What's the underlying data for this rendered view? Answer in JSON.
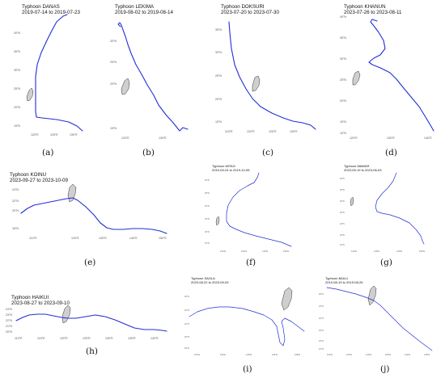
{
  "panels": [
    {
      "id": "a",
      "caption": "(a)",
      "typhoon": "Typhoon DANAS",
      "dates": "2019-07-14 to 2019-07-23",
      "x_ticks": [
        "120°E",
        "125°E",
        "130°E"
      ],
      "y_ticks": [
        "40°N",
        "35°N",
        "30°N",
        "25°N",
        "20°N",
        "15°N"
      ]
    },
    {
      "id": "b",
      "caption": "(b)",
      "typhoon": "Typhoon LEKIMA",
      "dates": "2019-08-02 to 2019-08-14",
      "x_ticks": [
        "120°E",
        "130°E"
      ],
      "y_ticks": [
        "30°N",
        "25°N",
        "20°N",
        "15°N"
      ]
    },
    {
      "id": "c",
      "caption": "(c)",
      "typhoon": "Typhoon DOKSURI",
      "dates": "2023-07-20 to 2023-07-30",
      "x_ticks": [
        "115°E",
        "120°E",
        "125°E",
        "130°E"
      ],
      "y_ticks": [
        "35°N",
        "30°N",
        "25°N",
        "20°N",
        "15°N"
      ]
    },
    {
      "id": "d",
      "caption": "(d)",
      "typhoon": "Typhoon KHANUN",
      "dates": "2023-07-26 to 2023-08-11",
      "x_ticks": [
        "120°E",
        "130°E",
        "140°E"
      ],
      "y_ticks": [
        "40°N",
        "35°N",
        "30°N",
        "25°N",
        "20°N",
        "15°N",
        "10°N"
      ]
    },
    {
      "id": "e",
      "caption": "(e)",
      "typhoon": "Typhoon KOINU",
      "dates": "2023-09-27 to 2023-10-09",
      "x_ticks": [
        "110°E",
        "120°E",
        "130°E",
        "140°E",
        "150°E"
      ],
      "y_ticks": [
        "24°N",
        "22°N",
        "20°N",
        "18°N"
      ]
    },
    {
      "id": "f",
      "caption": "(f)",
      "typhoon": "Typhoon MITAG",
      "dates": "2019-09-24 to 2019-10-05",
      "x_ticks": [
        "120°E",
        "130°E",
        "140°E",
        "150°E"
      ],
      "y_ticks": [
        "40°N",
        "35°N",
        "30°N",
        "25°N",
        "20°N",
        "15°N"
      ]
    },
    {
      "id": "g",
      "caption": "(g)",
      "typhoon": "Typhoon MAWAR",
      "dates": "2023-05-19 to 2023-06-03",
      "x_ticks": [
        "120°E",
        "130°E",
        "140°E",
        "150°E"
      ],
      "y_ticks": [
        "40°N",
        "35°N",
        "30°N",
        "25°N",
        "20°N",
        "15°N",
        "10°N"
      ]
    },
    {
      "id": "h",
      "caption": "(h)",
      "typhoon": "Typhoon HAIKUI",
      "dates": "2023-08-27 to 2023-09-10",
      "x_ticks": [
        "110°E",
        "115°E",
        "120°E",
        "125°E",
        "130°E",
        "135°E",
        "140°E"
      ],
      "y_ticks": [
        "24°N",
        "23°N",
        "22°N",
        "21°N",
        "20°N"
      ]
    },
    {
      "id": "i",
      "caption": "(i)",
      "typhoon": "Typhoon SAOLA",
      "dates": "2023-08-22 to 2023-09-03",
      "x_ticks": [
        "112°E",
        "116°E",
        "120°E",
        "124°E",
        "128°E"
      ],
      "y_ticks": [
        "26°N",
        "24°N",
        "22°N",
        "20°N",
        "18°N"
      ]
    },
    {
      "id": "j",
      "caption": "(j)",
      "typhoon": "Typhoon BAILU",
      "dates": "2019-08-19 to 2019-08-26",
      "x_ticks": [
        "110°E",
        "115°E",
        "120°E",
        "125°E",
        "130°E",
        "135°E"
      ],
      "y_ticks": [
        "26°N",
        "24°N",
        "22°N",
        "20°N",
        "18°N",
        "16°N"
      ]
    }
  ],
  "colors": {
    "track": "#1f2fd6",
    "land": "#cfcfcf",
    "land_outline": "#333333"
  }
}
